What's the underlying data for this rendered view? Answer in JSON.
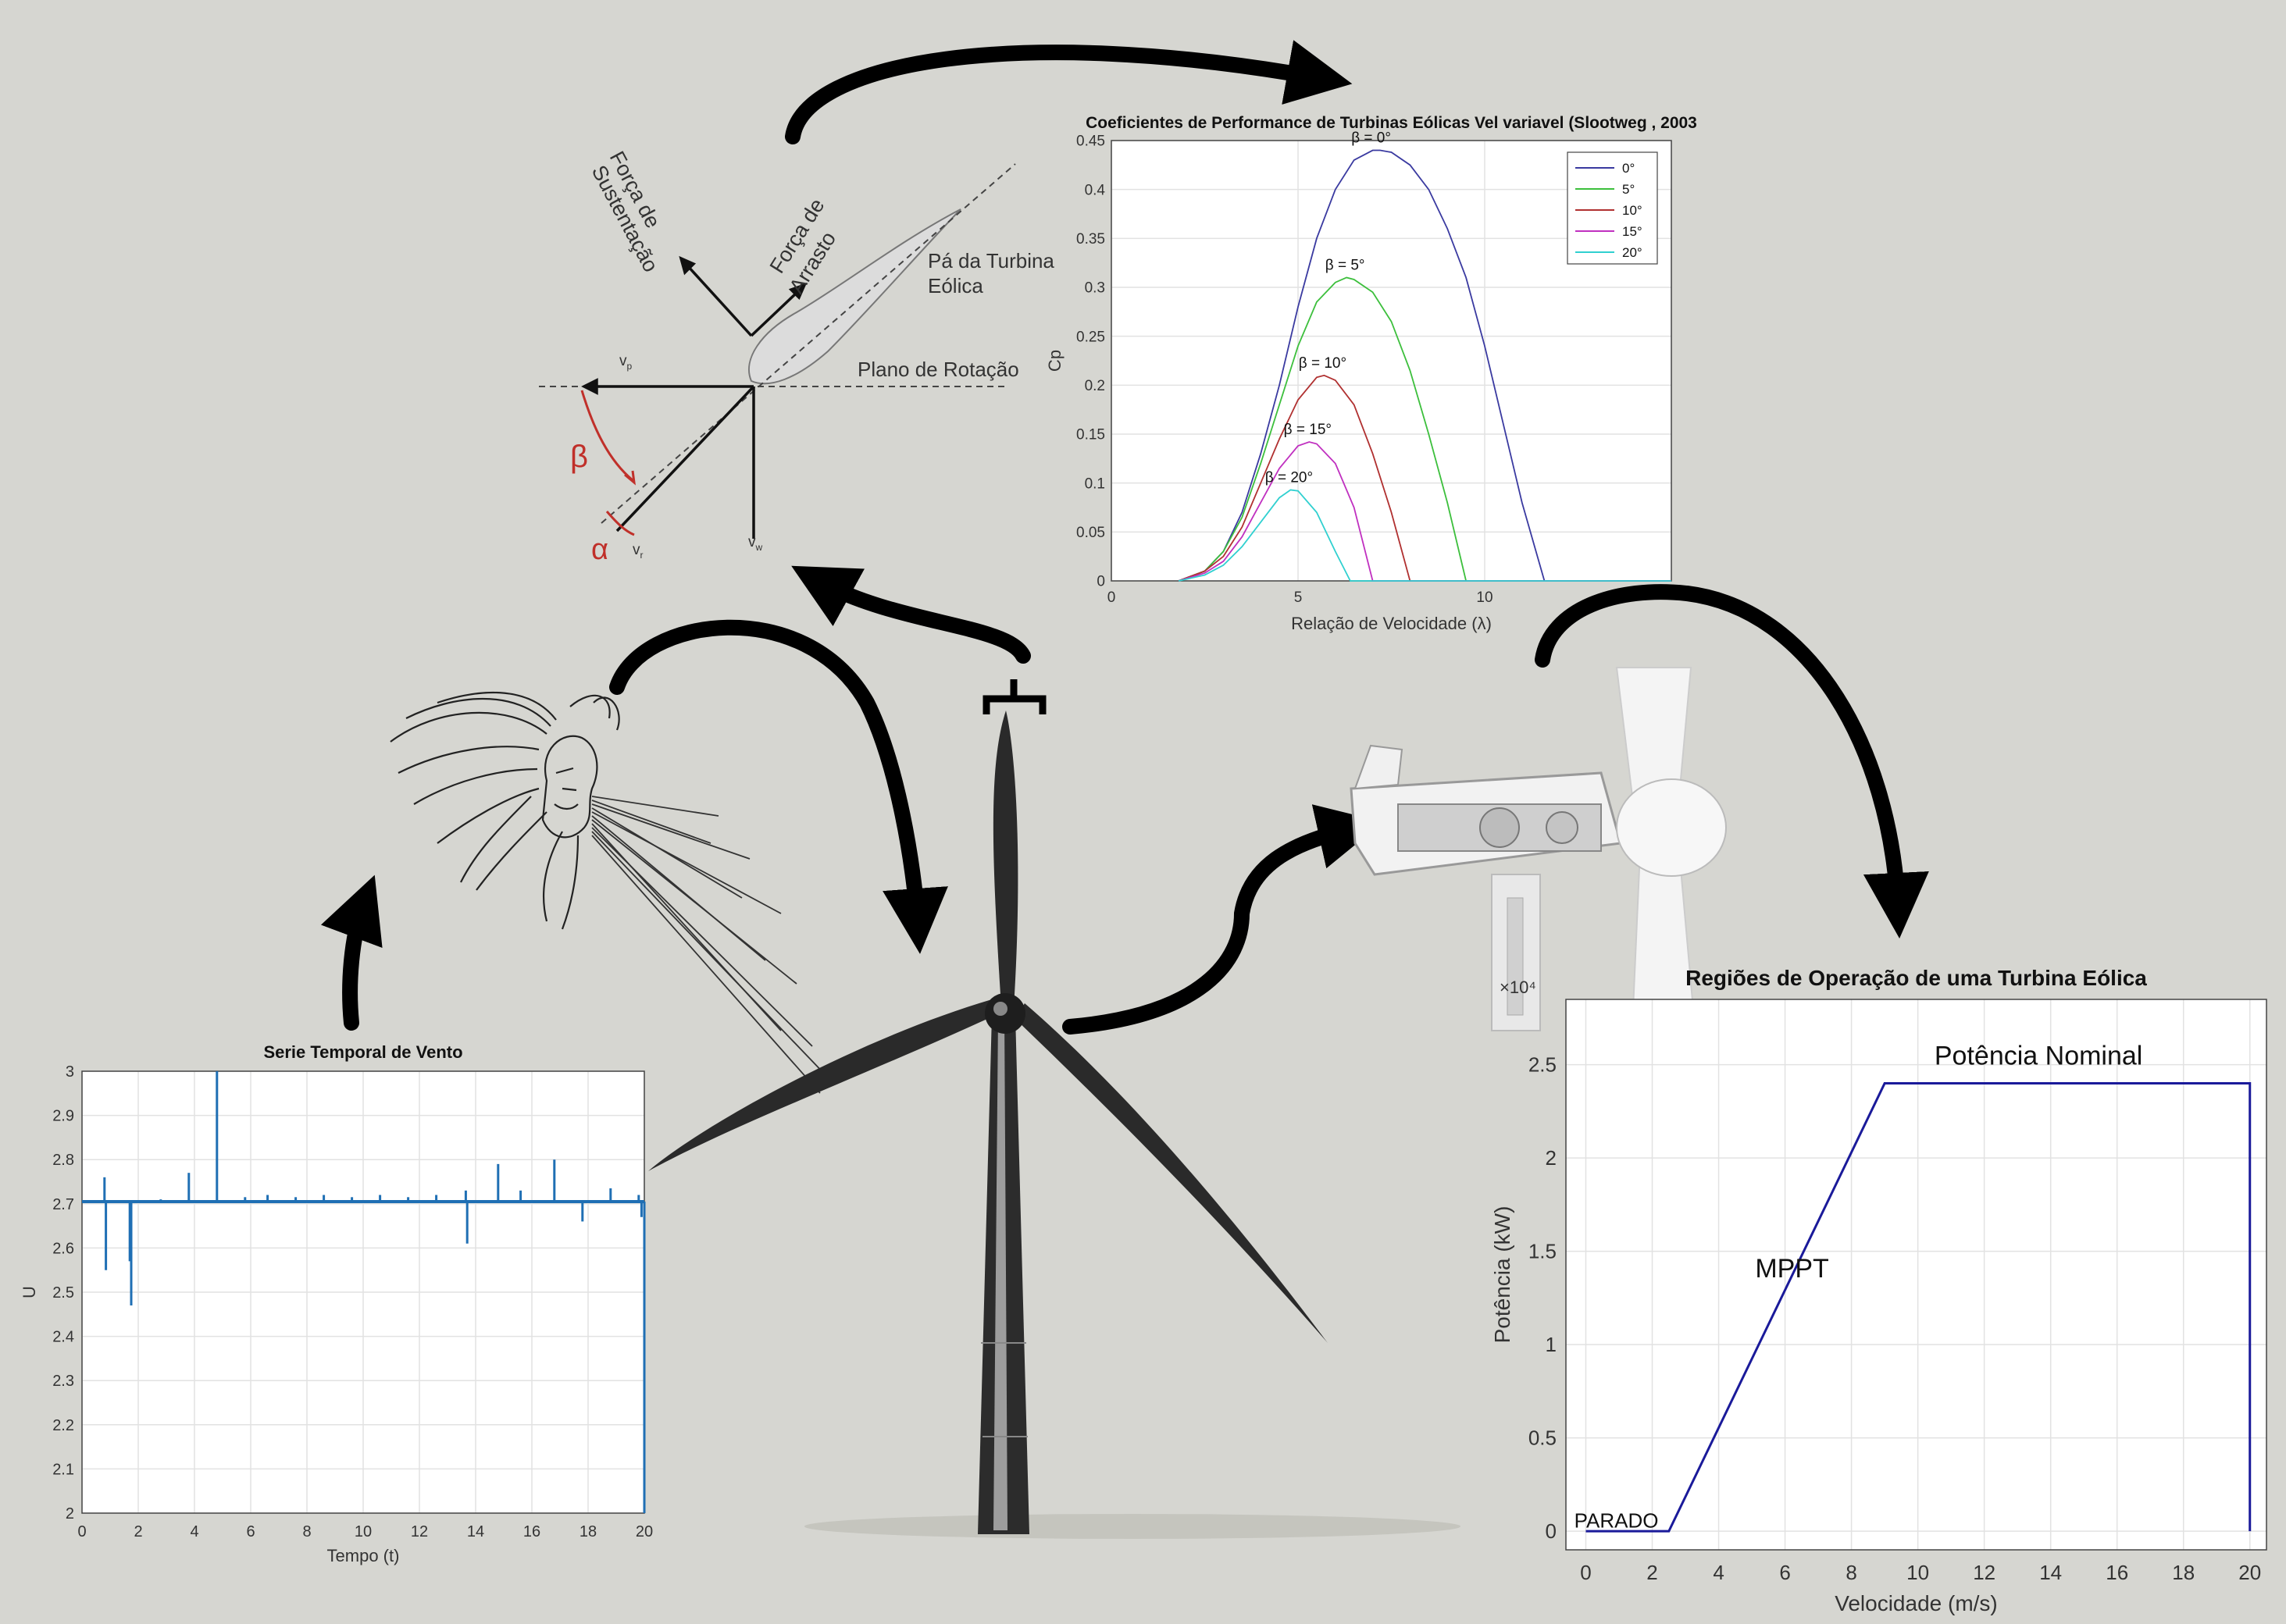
{
  "blade_diagram": {
    "lift_force": [
      "Força de",
      "Sustentação"
    ],
    "drag_force": [
      "Força de",
      "Arrasto"
    ],
    "blade": [
      "Pá da Turbina",
      "Eólica"
    ],
    "rotation_plane": "Plano de Rotação",
    "vp": "v",
    "vp_sub": "p",
    "vw": "v",
    "vw_sub": "w",
    "vr": "v",
    "vr_sub": "r",
    "beta": "β",
    "alpha": "α",
    "angle_color": "#c0302a"
  },
  "chart_data": [
    {
      "type": "line",
      "title": "Coeficientes de Performance de Turbinas Eólicas Vel variavel (Slootweg , 2003",
      "xlabel": "Relação de Velocidade (λ)",
      "ylabel": "Cp",
      "xlim": [
        0,
        15
      ],
      "ylim": [
        0,
        0.45
      ],
      "xticks": [
        "0",
        "5",
        "10"
      ],
      "yticks": [
        "0",
        "0.05",
        "0.1",
        "0.15",
        "0.2",
        "0.25",
        "0.3",
        "0.35",
        "0.4",
        "0.45"
      ],
      "grid": true,
      "legend_position": "top-right",
      "series": [
        {
          "name": "0°",
          "color": "#3a3aa0",
          "peak_label": "β = 0°",
          "x": [
            1.8,
            2.5,
            3,
            3.5,
            4,
            4.5,
            5,
            5.5,
            6,
            6.5,
            7,
            7.2,
            7.5,
            8,
            8.5,
            9,
            9.5,
            10,
            10.5,
            11,
            11.6,
            15
          ],
          "y": [
            0,
            0.01,
            0.03,
            0.07,
            0.13,
            0.2,
            0.28,
            0.35,
            0.4,
            0.43,
            0.44,
            0.44,
            0.438,
            0.425,
            0.4,
            0.36,
            0.31,
            0.24,
            0.16,
            0.08,
            0,
            0
          ]
        },
        {
          "name": "5°",
          "color": "#3cbf3c",
          "peak_label": "β = 5°",
          "x": [
            1.8,
            2.5,
            3,
            3.5,
            4,
            4.5,
            5,
            5.5,
            6,
            6.3,
            6.5,
            7,
            7.5,
            8,
            8.5,
            9,
            9.5,
            15
          ],
          "y": [
            0,
            0.01,
            0.03,
            0.065,
            0.12,
            0.18,
            0.24,
            0.285,
            0.305,
            0.31,
            0.308,
            0.295,
            0.265,
            0.215,
            0.15,
            0.08,
            0,
            0
          ]
        },
        {
          "name": "10°",
          "color": "#b03030",
          "peak_label": "β = 10°",
          "x": [
            1.8,
            2.5,
            3,
            3.5,
            4,
            4.5,
            5,
            5.5,
            5.7,
            6,
            6.5,
            7,
            7.5,
            8,
            15
          ],
          "y": [
            0,
            0.01,
            0.025,
            0.055,
            0.1,
            0.145,
            0.185,
            0.208,
            0.21,
            0.205,
            0.18,
            0.13,
            0.07,
            0,
            0
          ]
        },
        {
          "name": "15°",
          "color": "#c030c0",
          "peak_label": "β = 15°",
          "x": [
            1.8,
            2.5,
            3,
            3.5,
            4,
            4.5,
            5,
            5.3,
            5.5,
            6,
            6.5,
            7.0,
            15
          ],
          "y": [
            0,
            0.008,
            0.02,
            0.045,
            0.08,
            0.115,
            0.138,
            0.142,
            0.14,
            0.12,
            0.075,
            0,
            0
          ]
        },
        {
          "name": "20°",
          "color": "#30d0d0",
          "peak_label": "β = 20°",
          "x": [
            1.8,
            2.5,
            3,
            3.5,
            4,
            4.5,
            4.8,
            5,
            5.5,
            6,
            6.4,
            15
          ],
          "y": [
            0,
            0.006,
            0.016,
            0.035,
            0.06,
            0.085,
            0.093,
            0.092,
            0.07,
            0.03,
            0,
            0
          ]
        }
      ]
    },
    {
      "type": "line",
      "title": "Serie Temporal de Vento",
      "xlabel": "Tempo (t)",
      "ylabel": "U",
      "xlim": [
        0,
        20
      ],
      "ylim": [
        2,
        3
      ],
      "xticks": [
        "0",
        "2",
        "4",
        "6",
        "8",
        "10",
        "12",
        "14",
        "16",
        "18",
        "20"
      ],
      "yticks": [
        "2",
        "2.1",
        "2.2",
        "2.3",
        "2.4",
        "2.5",
        "2.6",
        "2.7",
        "2.8",
        "2.9",
        "3"
      ],
      "grid": true,
      "color": "#1f6fb4",
      "baseline": 2.705,
      "spikes": [
        {
          "x": 0.8,
          "y": 2.76
        },
        {
          "x": 0.85,
          "y": 2.55
        },
        {
          "x": 1.75,
          "y": 2.47
        },
        {
          "x": 1.7,
          "y": 2.57
        },
        {
          "x": 2.8,
          "y": 2.71
        },
        {
          "x": 3.8,
          "y": 2.77
        },
        {
          "x": 4.8,
          "y": 3.0
        },
        {
          "x": 5.8,
          "y": 2.715
        },
        {
          "x": 6.6,
          "y": 2.72
        },
        {
          "x": 7.6,
          "y": 2.715
        },
        {
          "x": 8.6,
          "y": 2.72
        },
        {
          "x": 9.6,
          "y": 2.715
        },
        {
          "x": 10.6,
          "y": 2.72
        },
        {
          "x": 11.6,
          "y": 2.715
        },
        {
          "x": 12.6,
          "y": 2.72
        },
        {
          "x": 13.7,
          "y": 2.61
        },
        {
          "x": 13.65,
          "y": 2.73
        },
        {
          "x": 14.8,
          "y": 2.79
        },
        {
          "x": 15.6,
          "y": 2.73
        },
        {
          "x": 16.8,
          "y": 2.8
        },
        {
          "x": 17.8,
          "y": 2.66
        },
        {
          "x": 18.8,
          "y": 2.735
        },
        {
          "x": 19.8,
          "y": 2.72
        },
        {
          "x": 19.9,
          "y": 2.67
        },
        {
          "x": 20.0,
          "y": 2.0
        }
      ]
    },
    {
      "type": "line",
      "title": "Regiões de Operação de uma Turbina Eólica",
      "xlabel": "Velocidade (m/s)",
      "ylabel": "Potência (kW)",
      "y_exponent": "×10⁴",
      "xlim": [
        -0.6,
        20.5
      ],
      "ylim": [
        -0.1,
        2.85
      ],
      "xticks": [
        "0",
        "2",
        "4",
        "6",
        "8",
        "10",
        "12",
        "14",
        "16",
        "18",
        "20"
      ],
      "yticks": [
        "0",
        "0.5",
        "1",
        "1.5",
        "2",
        "2.5"
      ],
      "grid": true,
      "color": "#1a1a9a",
      "x": [
        0,
        2.5,
        9,
        20,
        20
      ],
      "y": [
        0,
        0,
        2.4,
        2.4,
        0
      ],
      "annotations": [
        "PARADO",
        "MPPT",
        "Potência Nominal"
      ]
    }
  ]
}
